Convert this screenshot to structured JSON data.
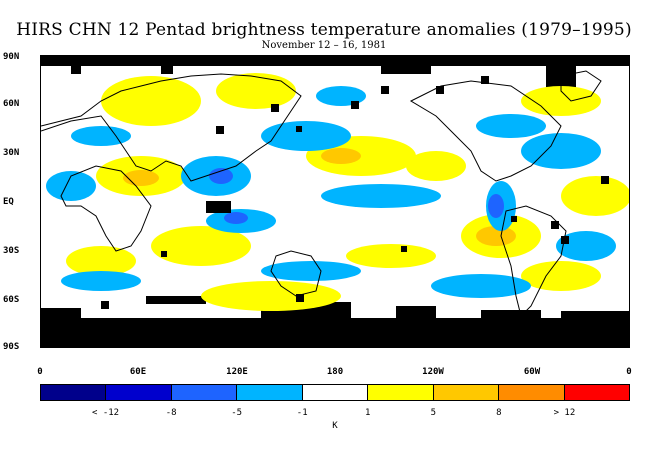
{
  "title": "HIRS CHN 12 Pentad brightness temperature anomalies (1979–1995)",
  "subtitle": "November 12 – 16, 1981",
  "lat_labels": [
    "90N",
    "60N",
    "30N",
    "EQ",
    "30S",
    "60S",
    "90S"
  ],
  "lon_labels": [
    "0",
    "60E",
    "120E",
    "180",
    "120W",
    "60W",
    "0"
  ],
  "colorbar": {
    "colors": [
      "#00008b",
      "#0000cd",
      "#1e64ff",
      "#00b4ff",
      "#ffffff",
      "#ffff00",
      "#ffc800",
      "#ff8c00",
      "#ff0000"
    ],
    "labels": [
      "< -12",
      "-8",
      "-5",
      "-1",
      "1",
      "5",
      "8",
      "> 12"
    ],
    "unit": "K"
  },
  "missing_color": "#000000"
}
